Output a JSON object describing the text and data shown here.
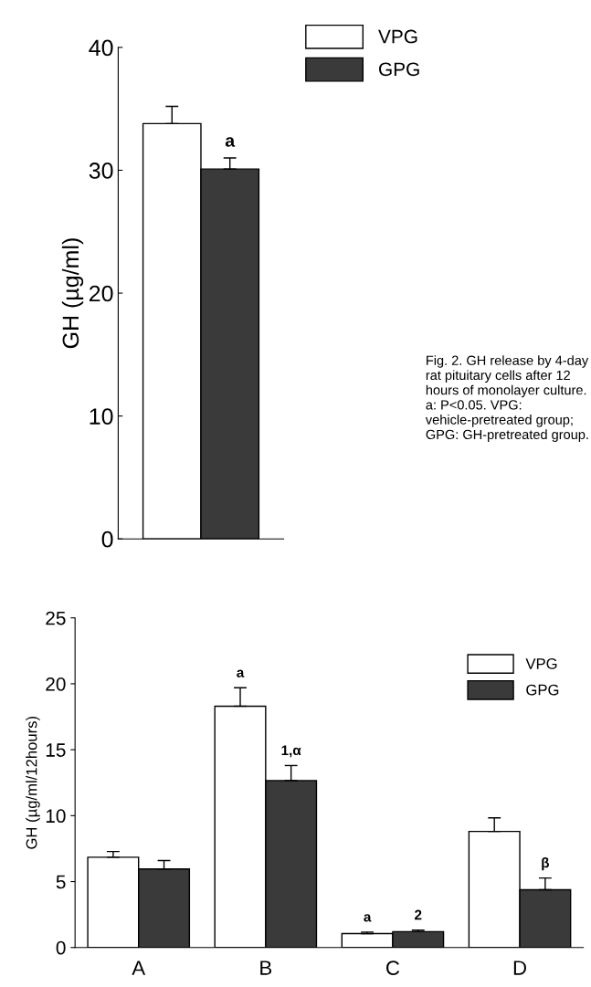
{
  "chart_data": [
    {
      "type": "bar",
      "ylabel": "GH (µg/ml)",
      "categories": [
        null
      ],
      "ylim": [
        0,
        40
      ],
      "yticks": [
        0,
        10,
        20,
        30,
        40
      ],
      "legend": "top right",
      "grid": false,
      "series": [
        {
          "name": "VPG",
          "color": "#ffffff",
          "values": [
            33.8
          ],
          "errors": [
            1.4
          ]
        },
        {
          "name": "GPG",
          "color": "#3a3a3a",
          "values": [
            30.1
          ],
          "errors": [
            0.9
          ]
        }
      ],
      "annotations": [
        {
          "text": "a",
          "y": 30.1
        },
        "Fig. 2. GH release by 4-day rat pituitary cells after 12 hours of monolayer culture. a: P<0.05. VPG: vehicle-pretreated group; GPG: GH-pretreated group."
      ]
    },
    {
      "type": "bar",
      "ylabel": "GH (µg/ml/12hours)",
      "categories": [
        "A",
        "B",
        "C",
        "D"
      ],
      "ylim": [
        0,
        25
      ],
      "yticks": [
        0,
        5,
        10,
        15,
        20,
        25
      ],
      "legend": "top right",
      "grid": false,
      "series": [
        {
          "name": "VPG",
          "color": "#ffffff",
          "values": [
            6.85,
            18.3,
            1.06,
            8.8
          ],
          "errors": [
            0.43,
            1.4,
            0.11,
            1.03
          ]
        },
        {
          "name": "GPG",
          "color": "#3a3a3a",
          "values": [
            5.96,
            12.66,
            1.2,
            4.38
          ],
          "errors": [
            0.64,
            1.14,
            0.12,
            0.89
          ]
        }
      ],
      "annotations": [
        {
          "text": "a",
          "x": "B",
          "y": 18.3
        },
        {
          "text": "1,α",
          "x": "B",
          "y": 12.66
        },
        {
          "text": "a",
          "x": "C",
          "y": 1.06
        },
        {
          "text": "2",
          "x": "C",
          "y": 1.2
        },
        {
          "text": "β",
          "x": "D",
          "y": 4.38
        }
      ]
    }
  ]
}
